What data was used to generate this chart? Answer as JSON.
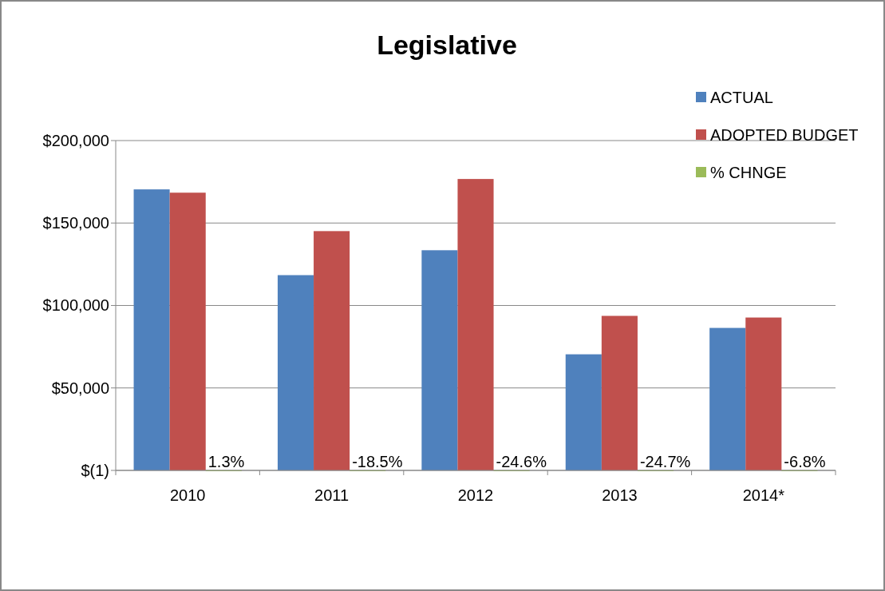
{
  "chart_data": {
    "type": "bar",
    "title": "Legislative",
    "categories": [
      "2010",
      "2011",
      "2012",
      "2013",
      "2014*"
    ],
    "series": [
      {
        "name": "ACTUAL",
        "color": "#4f81bd",
        "values": [
          170400,
          118400,
          133500,
          70400,
          86400
        ]
      },
      {
        "name": "ADOPTED BUDGET",
        "color": "#c0504d",
        "values": [
          168400,
          145100,
          176700,
          93700,
          92700
        ]
      },
      {
        "name": "% CHNGE",
        "color": "#9bbb59",
        "values": [
          0.013,
          -0.185,
          -0.246,
          -0.247,
          -0.068
        ],
        "value_labels": [
          "1.3%",
          "-18.5%",
          "-24.6%",
          "-24.7%",
          "-6.8%"
        ]
      }
    ],
    "ylim": [
      -1,
      200000
    ],
    "yticks": [
      {
        "value": -1,
        "label": "$(1)"
      },
      {
        "value": 50000,
        "label": "$50,000"
      },
      {
        "value": 100000,
        "label": "$100,000"
      },
      {
        "value": 150000,
        "label": "$150,000"
      },
      {
        "value": 200000,
        "label": "$200,000"
      }
    ],
    "grid": "y",
    "legend": "top right"
  }
}
